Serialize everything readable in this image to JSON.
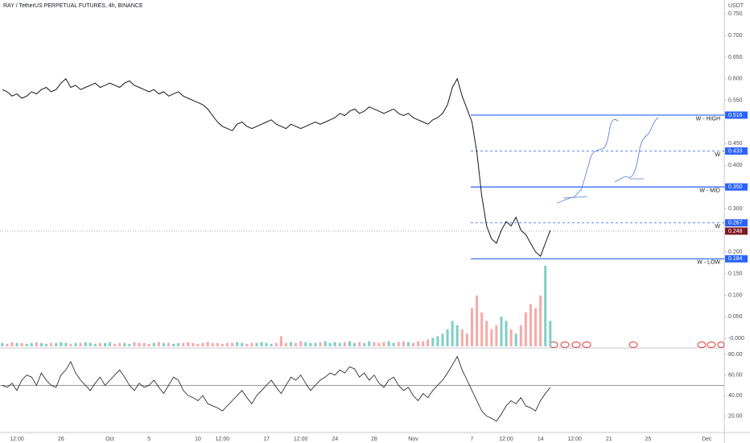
{
  "chart_data": {
    "type": "line",
    "title": "RAY / TetherUS PERPETUAL FUTURES, 4h, BINANCE",
    "y_label": "USDT",
    "color": "#131722",
    "up_color": "#7fcfc6",
    "down_color": "#f7a9a7",
    "level_color": "#2962ff",
    "current_color": "#801922",
    "categories": [
      null,
      null,
      null,
      "12:00",
      null,
      null,
      null,
      null,
      null,
      null,
      null,
      null,
      "26",
      null,
      null,
      null,
      null,
      null,
      null,
      null,
      null,
      null,
      "Oct",
      null,
      null,
      null,
      null,
      null,
      null,
      null,
      "5",
      null,
      null,
      null,
      null,
      null,
      null,
      null,
      null,
      null,
      "10",
      null,
      null,
      null,
      null,
      "12:00",
      null,
      null,
      null,
      null,
      null,
      null,
      null,
      null,
      "17",
      null,
      null,
      null,
      null,
      null,
      null,
      "12:00",
      null,
      null,
      null,
      null,
      null,
      null,
      "24",
      null,
      null,
      null,
      null,
      null,
      null,
      null,
      "28",
      null,
      null,
      null,
      null,
      null,
      null,
      null,
      "Nov",
      null,
      null,
      null,
      null,
      null,
      null,
      null,
      null,
      null,
      null,
      null,
      "7",
      null,
      null,
      null,
      null,
      null,
      null,
      "12:00",
      null,
      null,
      null,
      null,
      null,
      null,
      "14",
      null,
      null,
      null,
      null,
      null,
      null,
      "12:00",
      null,
      null,
      null,
      null,
      null,
      null,
      "21",
      null,
      null,
      null,
      null,
      null,
      null,
      null,
      "25",
      null,
      null,
      null,
      null,
      null,
      null,
      null,
      null,
      null,
      null,
      null,
      "Dec",
      null,
      null,
      null
    ],
    "values": [
      0.575,
      0.57,
      0.56,
      0.565,
      0.555,
      0.56,
      0.57,
      0.565,
      0.575,
      0.58,
      0.57,
      0.575,
      0.59,
      0.6,
      0.58,
      0.585,
      0.575,
      0.58,
      0.585,
      0.59,
      0.58,
      0.585,
      0.59,
      0.585,
      0.58,
      0.59,
      0.595,
      0.585,
      0.58,
      0.575,
      0.57,
      0.575,
      0.565,
      0.57,
      0.56,
      0.565,
      0.57,
      0.56,
      0.555,
      0.55,
      0.545,
      0.54,
      0.53,
      0.515,
      0.5,
      0.49,
      0.485,
      0.48,
      0.495,
      0.5,
      0.49,
      0.485,
      0.49,
      0.495,
      0.5,
      0.505,
      0.495,
      0.49,
      0.485,
      0.495,
      0.49,
      0.485,
      0.49,
      0.495,
      0.5,
      0.495,
      0.5,
      0.505,
      0.51,
      0.52,
      0.515,
      0.525,
      0.53,
      0.52,
      0.525,
      0.535,
      0.53,
      0.525,
      0.52,
      0.525,
      0.53,
      0.52,
      0.515,
      0.52,
      0.51,
      0.505,
      0.5,
      0.495,
      0.505,
      0.51,
      0.52,
      0.54,
      0.58,
      0.6,
      0.56,
      0.53,
      0.5,
      0.43,
      0.33,
      0.26,
      0.23,
      0.22,
      0.25,
      0.27,
      0.26,
      0.28,
      0.25,
      0.24,
      0.22,
      0.2,
      0.19,
      0.22,
      0.25,
      null,
      null,
      null,
      null,
      null,
      null,
      null,
      null,
      null,
      null,
      null,
      null,
      null,
      null,
      null,
      null,
      null,
      null,
      null,
      null,
      null,
      null,
      null,
      null,
      null,
      null,
      null,
      null,
      null,
      null,
      null,
      null,
      null,
      null,
      null
    ],
    "ylim": [
      -0.022,
      0.782
    ],
    "yticks": [
      {
        "value": 0.75,
        "label": "0.750"
      },
      {
        "value": 0.7,
        "label": "0.700"
      },
      {
        "value": 0.65,
        "label": "0.650"
      },
      {
        "value": 0.6,
        "label": "0.600"
      },
      {
        "value": 0.55,
        "label": "0.550"
      },
      {
        "value": 0.45,
        "label": "0.450"
      },
      {
        "value": 0.4,
        "label": "0.400"
      },
      {
        "value": 0.3,
        "label": "0.300"
      },
      {
        "value": 0.2,
        "label": "0.200"
      },
      {
        "value": 0.15,
        "label": "0.150"
      },
      {
        "value": 0.1,
        "label": "0.100"
      },
      {
        "value": 0.05,
        "label": "0.050"
      },
      {
        "value": 0,
        "label": "-0.000"
      }
    ],
    "levels": [
      {
        "value": 0.516,
        "value_label": "0.516",
        "label": "W - HIGH",
        "style": "solid"
      },
      {
        "value": 0.433,
        "value_label": "0.433",
        "label": "W",
        "style": "dashed"
      },
      {
        "value": 0.35,
        "value_label": "0.350",
        "label": "W - MID",
        "style": "solid"
      },
      {
        "value": 0.267,
        "value_label": "0.267",
        "label": "W",
        "style": "dashed"
      },
      {
        "value": 0.184,
        "value_label": "0.184",
        "label": "W - LOW",
        "style": "solid"
      }
    ],
    "current_price": {
      "value": 0.248,
      "value_label": "0.248"
    },
    "volume": [
      4,
      3,
      5,
      4,
      4,
      3,
      4,
      5,
      4,
      3,
      4,
      4,
      5,
      4,
      3,
      4,
      4,
      5,
      4,
      3,
      4,
      4,
      5,
      3,
      4,
      4,
      3,
      5,
      4,
      4,
      3,
      4,
      5,
      4,
      4,
      3,
      4,
      4,
      5,
      4,
      3,
      4,
      5,
      4,
      4,
      3,
      4,
      4,
      5,
      4,
      3,
      4,
      4,
      5,
      4,
      3,
      4,
      12,
      4,
      5,
      4,
      6,
      5,
      4,
      4,
      5,
      6,
      4,
      5,
      4,
      5,
      6,
      4,
      5,
      4,
      6,
      5,
      4,
      5,
      6,
      4,
      5,
      6,
      5,
      4,
      6,
      6,
      8,
      10,
      12,
      15,
      20,
      30,
      25,
      20,
      15,
      45,
      60,
      40,
      30,
      20,
      25,
      35,
      30,
      20,
      15,
      25,
      40,
      50,
      45,
      60,
      95,
      30,
      null,
      null,
      null,
      null,
      null,
      null,
      null,
      null,
      null,
      null,
      null,
      null,
      null,
      null,
      null,
      null,
      null,
      null,
      null,
      null,
      null,
      null,
      null,
      null,
      null,
      null,
      null,
      null,
      null,
      null,
      null,
      null,
      null,
      null,
      null
    ],
    "rsi": {
      "values": [
        50,
        48,
        52,
        45,
        55,
        60,
        58,
        50,
        62,
        55,
        50,
        48,
        60,
        65,
        73,
        62,
        55,
        50,
        45,
        52,
        58,
        50,
        55,
        60,
        65,
        58,
        50,
        45,
        52,
        48,
        50,
        55,
        48,
        42,
        50,
        58,
        55,
        45,
        40,
        38,
        35,
        40,
        32,
        30,
        28,
        25,
        30,
        35,
        40,
        45,
        38,
        32,
        40,
        45,
        50,
        55,
        48,
        42,
        50,
        58,
        55,
        60,
        52,
        45,
        50,
        55,
        58,
        62,
        60,
        65,
        62,
        68,
        66,
        58,
        62,
        55,
        60,
        52,
        48,
        55,
        58,
        50,
        45,
        48,
        40,
        35,
        42,
        38,
        45,
        50,
        55,
        62,
        70,
        78,
        65,
        55,
        45,
        35,
        25,
        20,
        18,
        15,
        22,
        30,
        35,
        32,
        38,
        30,
        28,
        25,
        35,
        42,
        48,
        null,
        null,
        null,
        null,
        null,
        null,
        null,
        null,
        null,
        null,
        null,
        null,
        null,
        null,
        null,
        null,
        null,
        null,
        null,
        null,
        null,
        null,
        null,
        null,
        null,
        null,
        null,
        null,
        null,
        null,
        null,
        null,
        null,
        null,
        null
      ],
      "ylim": [
        4,
        86.4
      ],
      "yticks": [
        {
          "value": 80,
          "label": "80.00"
        },
        {
          "value": 60,
          "label": "60.00"
        },
        {
          "value": 40,
          "label": "40.00"
        },
        {
          "value": 20,
          "label": "20.00"
        }
      ],
      "midline": 50,
      "color": "#131722"
    }
  }
}
